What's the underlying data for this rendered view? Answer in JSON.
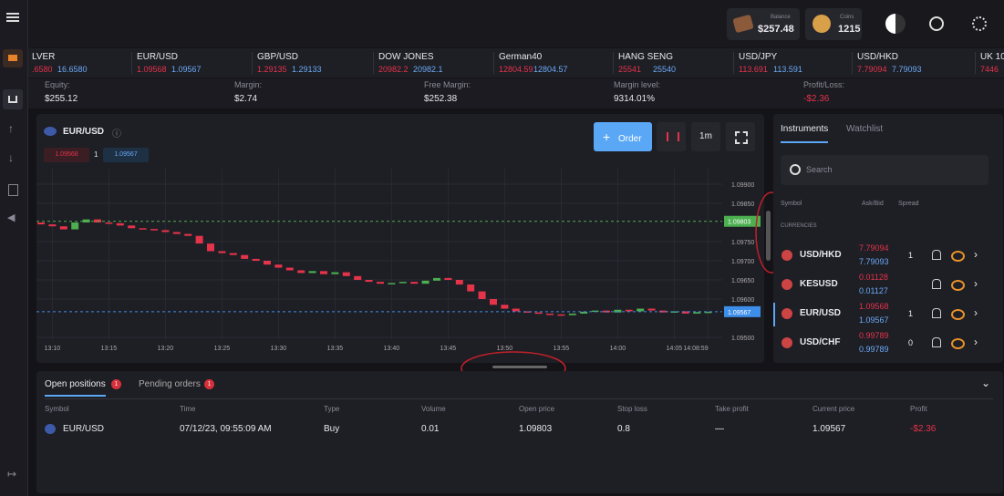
{
  "topbar": {
    "balance_label": "Balance",
    "balance": "$257.48",
    "coins_label": "Coins",
    "coins": "1215"
  },
  "tickers": [
    {
      "name": "LVER",
      "bid": ".6580",
      "ask": "16.6580"
    },
    {
      "name": "EUR/USD",
      "bid": "1.09568",
      "ask": "1.09567"
    },
    {
      "name": "GBP/USD",
      "bid": "1.29135",
      "ask": "1.29133"
    },
    {
      "name": "DOW JONES",
      "bid": "20982.2",
      "ask": "20982.1"
    },
    {
      "name": "German40",
      "bid": "12804.59",
      "ask": "12804.57"
    },
    {
      "name": "HANG SENG",
      "bid": "25541",
      "ask": "25540"
    },
    {
      "name": "USD/JPY",
      "bid": "113.691",
      "ask": "113.591"
    },
    {
      "name": "USD/HKD",
      "bid": "7.79094",
      "ask": "7.79093"
    },
    {
      "name": "UK 10",
      "bid": "7446"
    }
  ],
  "account": [
    {
      "label": "Equity:",
      "value": "$255.12"
    },
    {
      "label": "Margin:",
      "value": "$2.74"
    },
    {
      "label": "Free Margin:",
      "value": "$252.38"
    },
    {
      "label": "Margin level:",
      "value": "9314.01%"
    },
    {
      "label": "Profit/Loss:",
      "value": "-$2.36"
    }
  ],
  "chart_panel": {
    "symbol": "EUR/USD",
    "bid": "1.09568",
    "spread": "1",
    "ask": "1.09567",
    "order_button": "Order",
    "interval": "1m",
    "chart": {
      "type": "candlestick",
      "up_color": "#4caf50",
      "down_color": "#e5334a",
      "grid": true,
      "categories": [
        null,
        "13:10",
        null,
        null,
        null,
        null,
        "13:15",
        null,
        null,
        null,
        null,
        "13:20",
        null,
        null,
        null,
        null,
        "13:25",
        null,
        null,
        null,
        null,
        "13:30",
        null,
        null,
        null,
        null,
        "13:35",
        null,
        null,
        null,
        null,
        "13:40",
        null,
        null,
        null,
        null,
        "13:45",
        null,
        null,
        null,
        null,
        "13:50",
        null,
        null,
        null,
        null,
        "13:55",
        null,
        null,
        null,
        null,
        "14:00",
        null,
        null,
        null,
        null,
        "14:05",
        null,
        null,
        "14:08:59"
      ],
      "open": [
        1.098,
        1.09795,
        1.0979,
        1.09782,
        1.098,
        1.09808,
        1.098,
        1.09798,
        1.09792,
        1.09785,
        1.09783,
        1.0978,
        1.09775,
        1.0977,
        1.09765,
        1.09745,
        1.09725,
        1.0972,
        1.09715,
        1.09705,
        1.097,
        1.0969,
        1.09682,
        1.09675,
        1.09668,
        1.09673,
        1.09665,
        1.0967,
        1.0966,
        1.0965,
        1.09645,
        1.0964,
        1.09642,
        1.09645,
        1.0964,
        1.09648,
        1.09655,
        1.0965,
        1.09638,
        1.0962,
        1.096,
        1.09585,
        1.09575,
        1.09568,
        1.09565,
        1.09562,
        1.0956,
        1.09558,
        1.09562,
        1.09567,
        1.0957,
        1.09565,
        1.09572,
        1.09568,
        1.09575,
        1.0957,
        1.09565,
        1.09568,
        1.09562,
        1.09566
      ],
      "close": [
        1.09795,
        1.0979,
        1.09782,
        1.098,
        1.09808,
        1.098,
        1.09798,
        1.09792,
        1.09785,
        1.09783,
        1.0978,
        1.09775,
        1.0977,
        1.09765,
        1.09745,
        1.09725,
        1.0972,
        1.09715,
        1.09705,
        1.097,
        1.0969,
        1.09682,
        1.09675,
        1.09668,
        1.09673,
        1.09665,
        1.0967,
        1.0966,
        1.0965,
        1.09645,
        1.0964,
        1.09642,
        1.09645,
        1.0964,
        1.09648,
        1.09655,
        1.0965,
        1.09638,
        1.0962,
        1.096,
        1.09585,
        1.09575,
        1.09568,
        1.09565,
        1.09562,
        1.0956,
        1.09558,
        1.09562,
        1.09567,
        1.0957,
        1.09565,
        1.09572,
        1.09568,
        1.09575,
        1.0957,
        1.09565,
        1.09568,
        1.09562,
        1.09566,
        1.09567
      ],
      "ylim": [
        1.095,
        1.099
      ],
      "yticks": [
        {
          "value": 1.099,
          "label": "1.09900"
        },
        {
          "value": 1.0985,
          "label": "1.09850"
        },
        {
          "value": 1.0975,
          "label": "1.09750"
        },
        {
          "value": 1.097,
          "label": "1.09700"
        },
        {
          "value": 1.0965,
          "label": "1.09650"
        },
        {
          "value": 1.096,
          "label": "1.09600"
        },
        {
          "value": 1.095,
          "label": "1.09500"
        }
      ],
      "price_lines": [
        {
          "value": 1.09803,
          "color": "#4caf50"
        },
        {
          "value": 1.09567,
          "color": "#3d8ee8"
        }
      ]
    }
  },
  "instruments": {
    "tabs": [
      "Instruments",
      "Watchlist"
    ],
    "search_placeholder": "Search",
    "columns": [
      "Symbol",
      "Ask/Bid",
      "Spread"
    ],
    "group": "CURRENCIES",
    "rows": [
      {
        "symbol": "USD/HKD",
        "ask": "7.79094",
        "bid": "7.79093",
        "spread": "1"
      },
      {
        "symbol": "KESUSD",
        "ask": "0.01128",
        "bid": "0.01127"
      },
      {
        "symbol": "EUR/USD",
        "ask": "1.09568",
        "bid": "1.09567",
        "spread": "1"
      },
      {
        "symbol": "USD/CHF",
        "ask": "0.99789",
        "bid": "0.99789",
        "spread": "0"
      }
    ]
  },
  "positions": {
    "tabs": [
      {
        "label": "Open positions",
        "count": "1"
      },
      {
        "label": "Pending orders",
        "count": "1"
      }
    ],
    "columns": [
      "Symbol",
      "Time",
      "Type",
      "Volume",
      "Open price",
      "Stop loss",
      "Take profit",
      "Current price",
      "Profit"
    ],
    "rows": [
      [
        "EUR/USD",
        "07/12/23, 09:55:09 AM",
        "Buy",
        "0.01",
        "1.09803",
        "0.8",
        "—",
        "1.09567",
        "-$2.36"
      ]
    ]
  }
}
